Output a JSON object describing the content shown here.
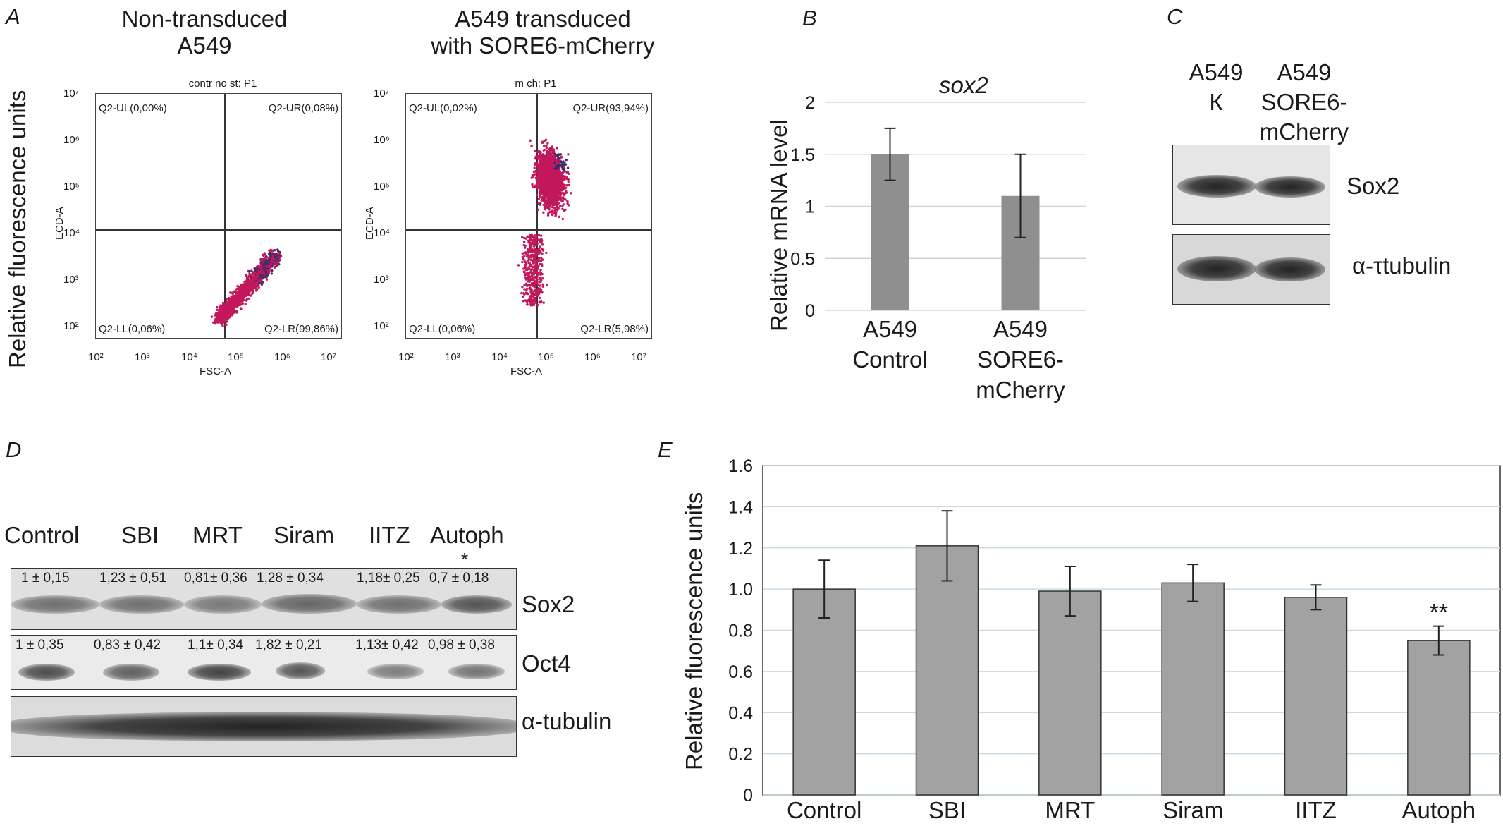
{
  "panel_a": {
    "letter": "A",
    "ylabel": "Relative fluorescence units",
    "left_title": [
      "Non-transduced",
      "A549"
    ],
    "right_title": [
      "A549 transduced",
      "with SORE6-mCherry"
    ],
    "left_plot": {
      "header": "contr no st: P1",
      "xlabel": "FSC-A",
      "ylabel": "ECD-A",
      "quadrants": {
        "ul": "Q2-UL(0,00%)",
        "ur": "Q2-UR(0,08%)",
        "ll": "Q2-LL(0,06%)",
        "lr": "Q2-LR(99,86%)"
      }
    },
    "right_plot": {
      "header": "m ch: P1",
      "xlabel": "FSC-A",
      "ylabel": "ECD-A",
      "quadrants": {
        "ul": "Q2-UL(0,02%)",
        "ur": "Q2-UR(93,94%)",
        "ll": "Q2-LL(0,06%)",
        "lr": "Q2-LR(5,98%)"
      }
    },
    "x_ticks": [
      "10²",
      "10³",
      "10⁴",
      "10⁵",
      "10⁶",
      "10⁷"
    ],
    "y_ticks": [
      "10⁷",
      "10⁶",
      "10⁵",
      "10⁴",
      "10³",
      "10²"
    ],
    "dot_color": "#c2185b"
  },
  "chart_data": [
    {
      "id": "B",
      "type": "bar",
      "title": "sox2",
      "ylabel": "Relative mRNA level",
      "categories": [
        [
          "A549",
          "Control"
        ],
        [
          "A549",
          "SORE6-",
          "mCherry"
        ]
      ],
      "values": [
        1.5,
        1.1
      ],
      "errors": [
        0.25,
        0.4
      ],
      "ylim": [
        0,
        2
      ],
      "yticks": [
        "0",
        "0.5",
        "1",
        "1.5",
        "2"
      ],
      "bar_color": "#8f8f8f"
    },
    {
      "id": "E",
      "type": "bar",
      "title": "",
      "ylabel": "Relative fluorescence units",
      "categories": [
        "Control",
        "SBI",
        "MRT",
        "Siram",
        "IITZ",
        "Autoph"
      ],
      "values": [
        1.0,
        1.21,
        0.99,
        1.03,
        0.96,
        0.75
      ],
      "errors": [
        0.14,
        0.17,
        0.12,
        0.09,
        0.06,
        0.07
      ],
      "annotations": [
        "",
        "",
        "",
        "",
        "",
        "**"
      ],
      "ylim": [
        0,
        1.6
      ],
      "yticks": [
        "0",
        "0.2",
        "0.4",
        "0.6",
        "0.8",
        "1.0",
        "1.2",
        "1.4",
        "1.6"
      ],
      "bar_color": "#a2a2a2"
    }
  ],
  "panel_c": {
    "letter": "C",
    "col1": [
      "A549",
      "К"
    ],
    "col2": [
      "A549",
      "SORE6-",
      "mCherry"
    ],
    "blot1_label": "Sox2",
    "blot2_label": "α-τtubulin"
  },
  "panel_d": {
    "letter": "D",
    "lanes": [
      "Control",
      "SBI",
      "MRT",
      "Siram",
      "IITZ",
      "Autoph"
    ],
    "star": "*",
    "sox2_values": [
      "1 ± 0,15",
      "1,23 ± 0,51",
      "0,81± 0,36",
      "1,28 ± 0,34",
      "1,18± 0,25",
      "0,7 ± 0,18"
    ],
    "oct4_values": [
      "1 ± 0,35",
      "0,83 ± 0,42",
      "1,1± 0,34",
      "1,82 ± 0,21",
      "1,13± 0,42",
      "0,98 ± 0,38"
    ],
    "labels": [
      "Sox2",
      "Oct4",
      "α-tubulin"
    ]
  },
  "panel_b_letter": "B",
  "panel_e_letter": "E"
}
